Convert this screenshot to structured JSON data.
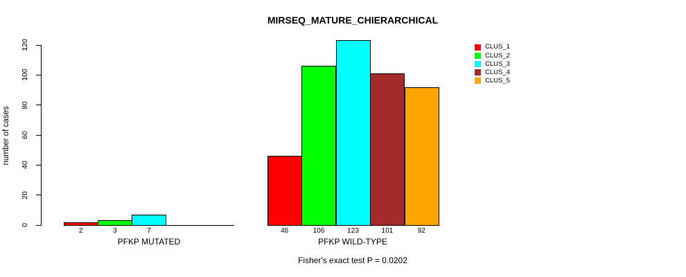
{
  "title": "MIRSEQ_MATURE_CHIERARCHICAL",
  "chart_data": {
    "type": "bar",
    "title": "MIRSEQ_MATURE_CHIERARCHICAL",
    "ylabel": "number of cases",
    "ylim": [
      0,
      120
    ],
    "yticks": [
      0,
      20,
      40,
      60,
      80,
      100,
      120
    ],
    "grid": false,
    "legend_position": "right-outside",
    "clusters": [
      {
        "name": "CLUS_1",
        "color": "#ff0000"
      },
      {
        "name": "CLUS_2",
        "color": "#00ff00"
      },
      {
        "name": "CLUS_3",
        "color": "#00ffff"
      },
      {
        "name": "CLUS_4",
        "color": "#a52a2a"
      },
      {
        "name": "CLUS_5",
        "color": "#ffa500"
      }
    ],
    "groups": [
      {
        "label": "PFKP MUTATED",
        "values": [
          2,
          3,
          7,
          0,
          0
        ],
        "bar_labels": [
          "2",
          "3",
          "7",
          "",
          ""
        ]
      },
      {
        "label": "PFKP WILD-TYPE",
        "values": [
          46,
          106,
          123,
          101,
          92
        ],
        "bar_labels": [
          "46",
          "106",
          "123",
          "101",
          "92"
        ]
      }
    ],
    "annotation": "Fisher's exact test P = 0.0202"
  }
}
